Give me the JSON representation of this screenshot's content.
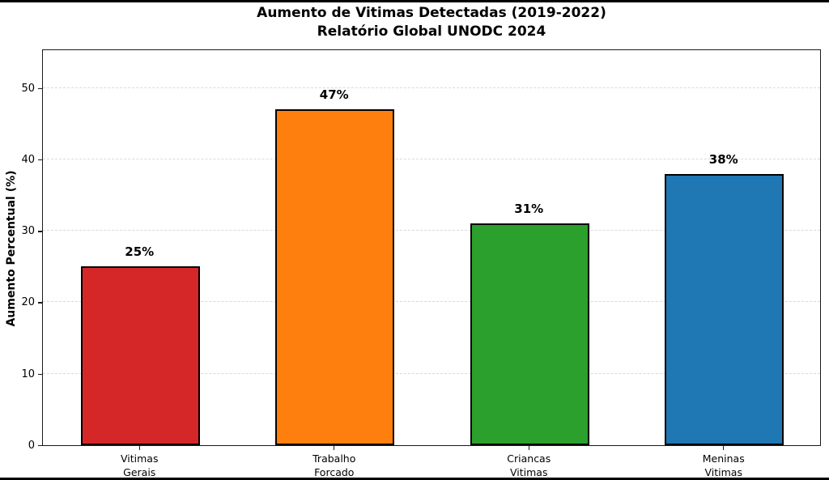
{
  "title": {
    "line1": "Aumento de Vitimas Detectadas (2019-2022)",
    "line2": "Relatório Global UNODC 2024"
  },
  "chart_data": {
    "type": "bar",
    "title": "Aumento de Vitimas Detectadas (2019-2022)\nRelatório Global UNODC 2024",
    "categories": [
      "Vitimas\nGerais",
      "Trabalho\nForcado",
      "Criancas\nVitimas",
      "Meninas\nVitimas"
    ],
    "values": [
      25,
      47,
      31,
      38
    ],
    "value_labels": [
      "25%",
      "47%",
      "31%",
      "38%"
    ],
    "bar_colors": [
      "#d62728",
      "#ff7f0e",
      "#2ca02c",
      "#1f77b4"
    ],
    "bar_edge_color": "#000000",
    "xlabel": "",
    "ylabel": "Aumento Percentual (%)",
    "ylim": [
      0,
      55.5
    ],
    "yticks": [
      0,
      10,
      20,
      30,
      40,
      50
    ],
    "grid": "horizontal dashed, drawn at y ticks",
    "legend": "none",
    "background_color": "#ffffff",
    "frame_color": "#1a1a1a"
  }
}
